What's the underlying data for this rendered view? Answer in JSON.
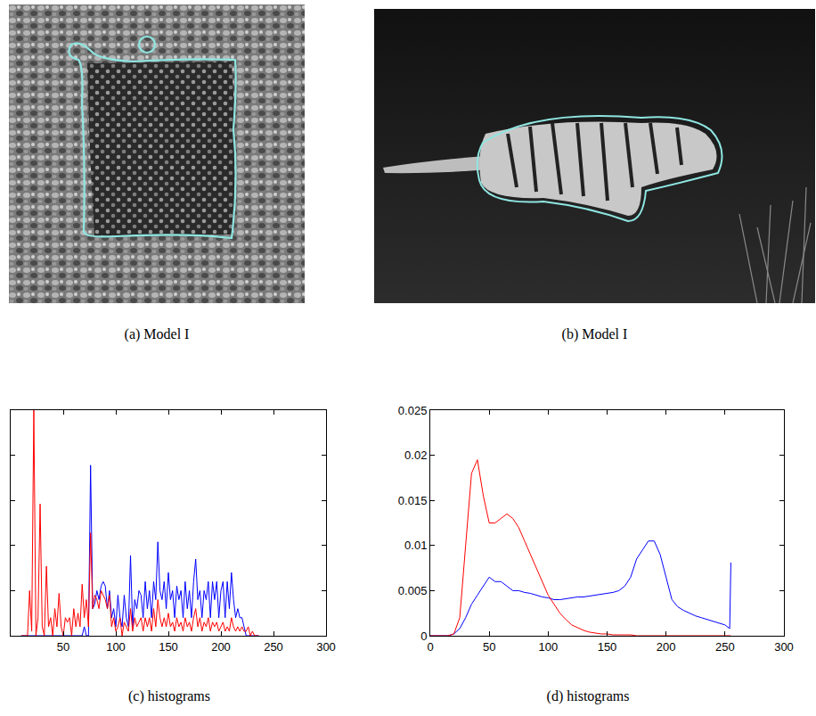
{
  "images": [
    {
      "caption": "(a) Model I"
    },
    {
      "caption": "(b) Model I"
    }
  ],
  "chart_data": [
    {
      "type": "line",
      "title": "(c) histograms",
      "x": [
        10,
        12,
        14,
        16,
        18,
        20,
        22,
        24,
        26,
        28,
        30,
        32,
        34,
        36,
        38,
        40,
        42,
        44,
        46,
        48,
        50,
        52,
        54,
        56,
        58,
        60,
        62,
        64,
        66,
        68,
        70,
        72,
        74,
        76,
        78,
        80,
        82,
        84,
        86,
        88,
        90,
        92,
        94,
        96,
        98,
        100,
        102,
        104,
        106,
        108,
        110,
        112,
        114,
        116,
        118,
        120,
        122,
        124,
        126,
        128,
        130,
        132,
        134,
        136,
        138,
        140,
        142,
        144,
        146,
        148,
        150,
        152,
        154,
        156,
        158,
        160,
        162,
        164,
        166,
        168,
        170,
        172,
        174,
        176,
        178,
        180,
        182,
        184,
        186,
        188,
        190,
        192,
        194,
        196,
        198,
        200,
        202,
        204,
        206,
        208,
        210,
        212,
        214,
        216,
        218,
        220,
        222,
        224,
        226,
        228,
        230,
        232,
        234,
        236
      ],
      "series": [
        {
          "color": "#0000ff",
          "values": [
            0,
            0,
            0,
            0,
            0,
            0,
            0,
            0,
            0,
            0,
            0,
            0,
            0,
            0,
            0,
            0,
            0,
            0,
            0,
            0,
            0,
            0,
            0,
            0,
            0,
            0,
            0,
            0,
            0,
            0,
            0.001,
            0,
            0,
            0.0189,
            0.003,
            0.0035,
            0.005,
            0.004,
            0.0055,
            0.006,
            0.0055,
            0.003,
            0.005,
            0.002,
            0.003,
            0.001,
            0.0045,
            0.002,
            0.001,
            0.0045,
            0.002,
            0.001,
            0.0089,
            0.001,
            0.004,
            0.003,
            0.005,
            0.0045,
            0.002,
            0.006,
            0.003,
            0.005,
            0.002,
            0.006,
            0.004,
            0.0104,
            0.005,
            0.004,
            0.006,
            0.003,
            0.007,
            0.004,
            0.005,
            0.002,
            0.0055,
            0.004,
            0.005,
            0.002,
            0.006,
            0.003,
            0.005,
            0.002,
            0.006,
            0.0085,
            0.004,
            0.005,
            0.002,
            0.005,
            0.004,
            0.006,
            0.002,
            0.006,
            0.004,
            0.006,
            0.002,
            0.005,
            0.006,
            0.002,
            0.006,
            0.003,
            0.007,
            0.004,
            0.002,
            0.003,
            0.002,
            0.002,
            0.001,
            0,
            0,
            0,
            0,
            0,
            0,
            0
          ]
        },
        {
          "color": "#ff0000",
          "values": [
            0,
            0,
            0,
            0,
            0.005,
            0.0005,
            0.025,
            0,
            0.002,
            0.0146,
            0.001,
            0,
            0.0077,
            0.001,
            0.002,
            0,
            0.003,
            0.001,
            0.0047,
            0.001,
            0,
            0.002,
            0.0015,
            0.002,
            0,
            0.003,
            0.001,
            0.0025,
            0.001,
            0.0057,
            0.002,
            0.004,
            0.001,
            0.0114,
            0.003,
            0.0045,
            0.004,
            0.003,
            0.005,
            0.0045,
            0.004,
            0.003,
            0.0045,
            0.001,
            0.002,
            0.0005,
            0.001,
            0.002,
            0,
            0.0015,
            0.001,
            0.0005,
            0.003,
            0.0005,
            0.002,
            0.001,
            0.0015,
            0.002,
            0.0005,
            0.002,
            0.001,
            0.002,
            0.0005,
            0.003,
            0.001,
            0.004,
            0.002,
            0.001,
            0.002,
            0.001,
            0.0025,
            0.001,
            0.0015,
            0.0005,
            0.002,
            0.001,
            0.0015,
            0.0005,
            0.002,
            0.001,
            0.0015,
            0.0005,
            0.002,
            0.003,
            0.001,
            0.002,
            0.0005,
            0.0015,
            0.001,
            0.002,
            0.0005,
            0.0015,
            0.001,
            0.0015,
            0.0005,
            0.001,
            0.0015,
            0.0005,
            0.001,
            0.0005,
            0.002,
            0.001,
            0.0005,
            0.001,
            0.0005,
            0.001,
            0.0005,
            0.0005,
            0.001,
            0,
            0.0005,
            0,
            0,
            0
          ]
        }
      ],
      "xlim": [
        0,
        300
      ],
      "xticks": [
        50,
        100,
        150,
        200,
        250,
        300
      ],
      "ylim": [
        0,
        0.025
      ],
      "yticks": [
        0,
        0.005,
        0.01,
        0.015,
        0.02,
        0.025
      ],
      "tick_labels": "x"
    },
    {
      "type": "line",
      "title": "(d) histograms",
      "x": [
        0,
        5,
        10,
        15,
        20,
        25,
        30,
        35,
        40,
        45,
        50,
        55,
        60,
        65,
        70,
        75,
        80,
        85,
        90,
        95,
        100,
        105,
        110,
        115,
        120,
        125,
        130,
        135,
        140,
        145,
        150,
        155,
        160,
        165,
        170,
        175,
        180,
        185,
        190,
        195,
        200,
        205,
        210,
        215,
        220,
        225,
        230,
        235,
        240,
        245,
        250,
        254,
        255
      ],
      "series": [
        {
          "color": "#0000ff",
          "values": [
            0,
            0,
            0,
            0,
            0.0002,
            0.0008,
            0.002,
            0.0035,
            0.0045,
            0.0055,
            0.0065,
            0.006,
            0.006,
            0.0055,
            0.005,
            0.005,
            0.0048,
            0.0047,
            0.0045,
            0.0043,
            0.0042,
            0.004,
            0.004,
            0.0041,
            0.0042,
            0.0043,
            0.0043,
            0.0044,
            0.0045,
            0.0046,
            0.0047,
            0.0048,
            0.005,
            0.0055,
            0.0065,
            0.0085,
            0.0095,
            0.0105,
            0.0105,
            0.009,
            0.0065,
            0.004,
            0.0032,
            0.0028,
            0.0025,
            0.0022,
            0.002,
            0.0018,
            0.0016,
            0.0014,
            0.0012,
            0.0008,
            0.0081
          ]
        },
        {
          "color": "#ff0000",
          "values": [
            0,
            0,
            0,
            0,
            0.0002,
            0.002,
            0.01,
            0.018,
            0.0195,
            0.0155,
            0.0125,
            0.0125,
            0.013,
            0.0135,
            0.013,
            0.012,
            0.0105,
            0.009,
            0.0075,
            0.006,
            0.0045,
            0.0035,
            0.0025,
            0.0018,
            0.0012,
            0.0009,
            0.0006,
            0.0004,
            0.0003,
            0.0002,
            0.0002,
            0.0001,
            0.0001,
            0.0001,
            0.0001,
            0,
            0,
            0,
            0,
            0,
            0,
            0,
            0,
            0,
            0,
            0,
            0,
            0,
            0,
            0,
            0,
            0,
            0
          ]
        }
      ],
      "xlim": [
        0,
        300
      ],
      "xticks": [
        0,
        50,
        100,
        150,
        200,
        250,
        300
      ],
      "ylim": [
        0,
        0.025
      ],
      "yticks": [
        0,
        0.005,
        0.01,
        0.015,
        0.02,
        0.025
      ]
    }
  ]
}
